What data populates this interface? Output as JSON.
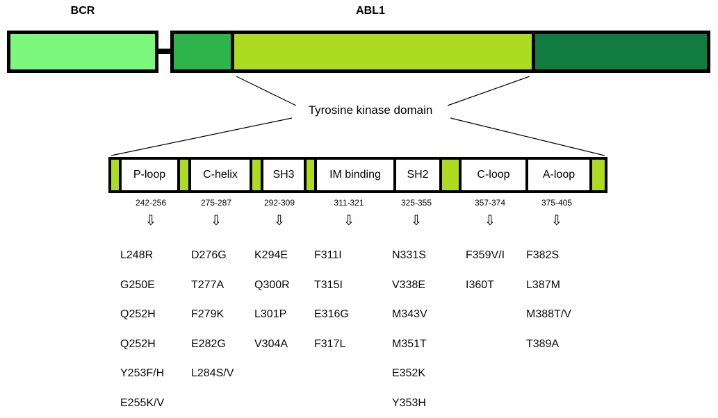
{
  "genes": {
    "bcr": "BCR",
    "abl1": "ABL1"
  },
  "kinase_domain_label": "Tyrosine kinase domain",
  "icons": {
    "down_arrow": "⇩"
  },
  "colors": {
    "bcr_green": "#7cf87c",
    "abl_medium_green": "#2fb34b",
    "kinase_yellow_green": "#addb21",
    "abl_dark_green": "#107c3f"
  },
  "domains": [
    {
      "name": "P-loop",
      "range": "242-256",
      "mutations": [
        "L248R",
        "G250E",
        "Q252H",
        "Q252H",
        "Y253F/H",
        "E255K/V"
      ]
    },
    {
      "name": "C-helix",
      "range": "275-287",
      "mutations": [
        "D276G",
        "T277A",
        "F279K",
        "E282G",
        "L284S/V"
      ]
    },
    {
      "name": "SH3",
      "range": "292-309",
      "mutations": [
        "K294E",
        "Q300R",
        "L301P",
        "V304A"
      ]
    },
    {
      "name": "IM binding",
      "range": "311-321",
      "mutations": [
        "F311I",
        "T315I",
        "E316G",
        "F317L"
      ]
    },
    {
      "name": "SH2",
      "range": "325-355",
      "mutations": [
        "N331S",
        "V338E",
        "M343V",
        "M351T",
        "E352K",
        "Y353H"
      ]
    },
    {
      "name": "C-loop",
      "range": "357-374",
      "mutations": [
        "F359V/I",
        "I360T"
      ]
    },
    {
      "name": "A-loop",
      "range": "375-405",
      "mutations": [
        "F382S",
        "L387M",
        "M388T/V",
        "T389A"
      ]
    }
  ]
}
